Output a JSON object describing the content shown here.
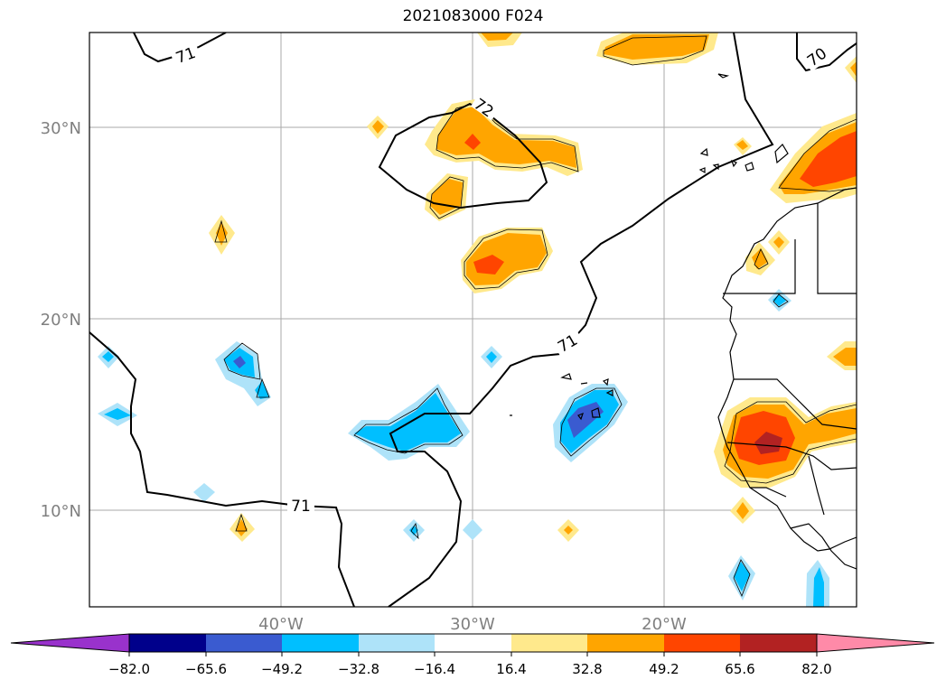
{
  "title": "2021083000 F024",
  "lat_labels": [
    "30°N",
    "20°N",
    "10°N"
  ],
  "lon_labels": [
    "40°W",
    "30°W",
    "20°W"
  ],
  "contour_labels": [
    "71",
    "72",
    "70",
    "71",
    "71"
  ],
  "colorbar": {
    "tick_labels": [
      "−82.0",
      "−65.6",
      "−49.2",
      "−32.8",
      "−16.4",
      "16.4",
      "32.8",
      "49.2",
      "65.6",
      "82.0"
    ],
    "colors": [
      "#9932cc",
      "#00008b",
      "#3a5bd0",
      "#00bfff",
      "#aee3f9",
      "#ffffff",
      "#ffe98c",
      "#ffa500",
      "#ff4500",
      "#b22222",
      "#ff8aa8"
    ]
  },
  "colors": {
    "grid": "#aaaaaa",
    "tick_label": "#808080",
    "contour": "#000000",
    "coast": "#000000"
  }
}
